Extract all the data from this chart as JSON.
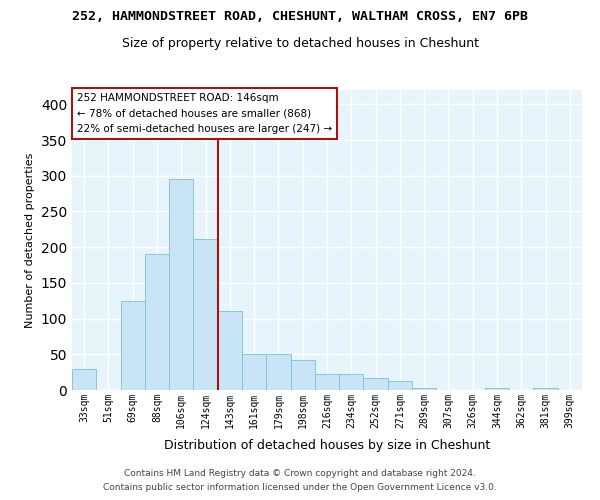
{
  "title_line1": "252, HAMMONDSTREET ROAD, CHESHUNT, WALTHAM CROSS, EN7 6PB",
  "title_line2": "Size of property relative to detached houses in Cheshunt",
  "xlabel": "Distribution of detached houses by size in Cheshunt",
  "ylabel": "Number of detached properties",
  "bar_labels": [
    "33sqm",
    "51sqm",
    "69sqm",
    "88sqm",
    "106sqm",
    "124sqm",
    "143sqm",
    "161sqm",
    "179sqm",
    "198sqm",
    "216sqm",
    "234sqm",
    "252sqm",
    "271sqm",
    "289sqm",
    "307sqm",
    "326sqm",
    "344sqm",
    "362sqm",
    "381sqm",
    "399sqm"
  ],
  "bar_values": [
    30,
    0,
    125,
    190,
    295,
    212,
    110,
    50,
    50,
    42,
    22,
    22,
    17,
    13,
    3,
    0,
    0,
    3,
    0,
    3,
    0
  ],
  "bar_color": "#c9e4f5",
  "bar_edge_color": "#7bbedd",
  "vline_x": 6,
  "vline_color": "#aa1111",
  "annotation_title": "252 HAMMONDSTREET ROAD: 146sqm",
  "annotation_line2": "← 78% of detached houses are smaller (868)",
  "annotation_line3": "22% of semi-detached houses are larger (247) →",
  "annotation_box_color": "#ffffff",
  "annotation_box_edge": "#aa1111",
  "ylim": [
    0,
    420
  ],
  "footer_line1": "Contains HM Land Registry data © Crown copyright and database right 2024.",
  "footer_line2": "Contains public sector information licensed under the Open Government Licence v3.0."
}
